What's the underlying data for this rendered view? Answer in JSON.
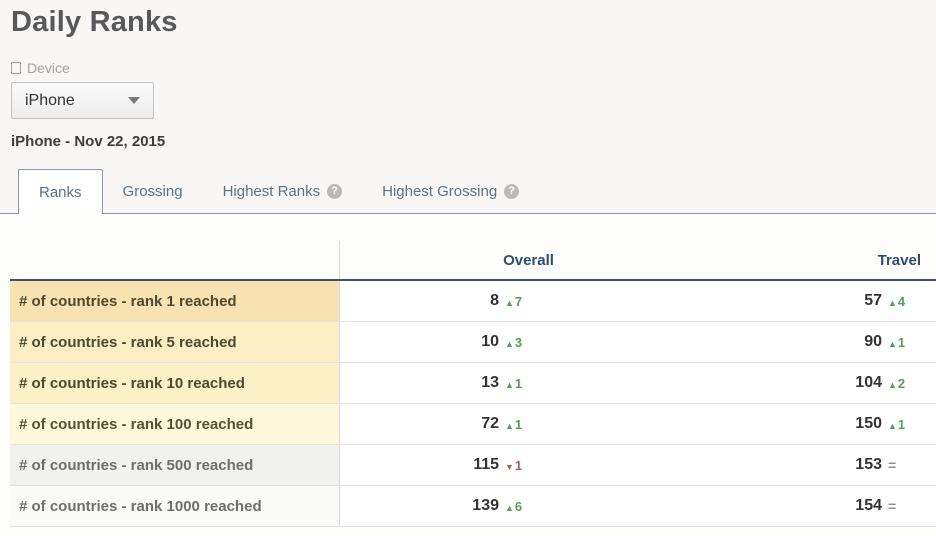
{
  "page": {
    "title": "Daily Ranks"
  },
  "filter": {
    "label": "Device",
    "selected_device": "iPhone"
  },
  "subtitle": "iPhone - Nov 22, 2015",
  "help_glyph": "?",
  "tabs": [
    {
      "label": "Ranks",
      "active": true,
      "help": false
    },
    {
      "label": "Grossing",
      "active": false,
      "help": false
    },
    {
      "label": "Highest Ranks",
      "active": false,
      "help": true
    },
    {
      "label": "Highest Grossing",
      "active": false,
      "help": true
    }
  ],
  "glyphs": {
    "up": "▲",
    "down": "▼",
    "equal": "="
  },
  "colors": {
    "up": "#55a155",
    "down": "#b05d5d",
    "equal": "#8f8f8f",
    "header_text": "#2d4e6f",
    "tab_text": "#5d7186",
    "header_border": "#3d5268"
  },
  "table": {
    "columns": {
      "overall": "Overall",
      "travel": "Travel"
    },
    "rows": [
      {
        "label": "# of countries - rank 1 reached",
        "label_bg": "#f9e2b1",
        "label_color": "#4c492e",
        "overall": {
          "value": "8",
          "delta": "7",
          "direction": "up"
        },
        "travel": {
          "value": "57",
          "delta": "4",
          "direction": "up"
        }
      },
      {
        "label": "# of countries - rank 5 reached",
        "label_bg": "#fbedc4",
        "label_color": "#4c492e",
        "overall": {
          "value": "10",
          "delta": "3",
          "direction": "up"
        },
        "travel": {
          "value": "90",
          "delta": "1",
          "direction": "up"
        }
      },
      {
        "label": "# of countries - rank 10 reached",
        "label_bg": "#fbf0c6",
        "label_color": "#4c492e",
        "overall": {
          "value": "13",
          "delta": "1",
          "direction": "up"
        },
        "travel": {
          "value": "104",
          "delta": "2",
          "direction": "up"
        }
      },
      {
        "label": "# of countries - rank 100 reached",
        "label_bg": "#fcf8da",
        "label_color": "#555139",
        "overall": {
          "value": "72",
          "delta": "1",
          "direction": "up"
        },
        "travel": {
          "value": "150",
          "delta": "1",
          "direction": "up"
        }
      },
      {
        "label": "# of countries - rank 500 reached",
        "label_bg": "#f1f1f0",
        "label_color": "#6e6e6e",
        "overall": {
          "value": "115",
          "delta": "1",
          "direction": "down"
        },
        "travel": {
          "value": "153",
          "delta": "",
          "direction": "equal"
        }
      },
      {
        "label": "# of countries - rank 1000 reached",
        "label_bg": "#fafaf9",
        "label_color": "#6e6e6e",
        "overall": {
          "value": "139",
          "delta": "6",
          "direction": "up"
        },
        "travel": {
          "value": "154",
          "delta": "",
          "direction": "equal"
        }
      }
    ]
  }
}
